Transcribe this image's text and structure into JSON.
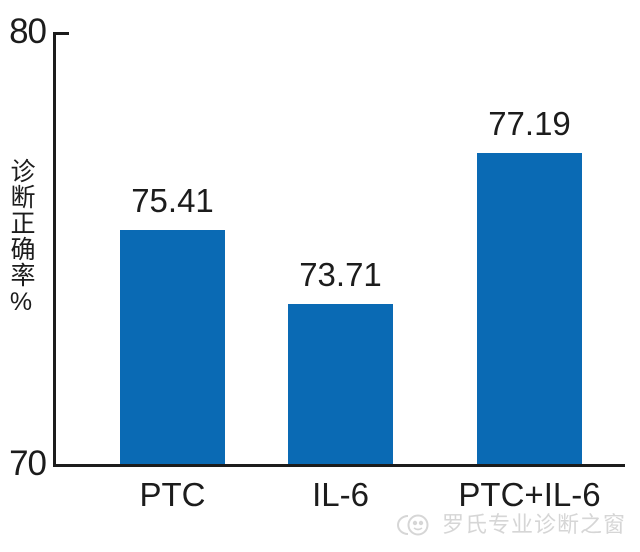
{
  "chart_data": {
    "type": "bar",
    "categories": [
      "PTC",
      "IL-6",
      "PTC+IL-6"
    ],
    "values": [
      75.41,
      73.71,
      77.19
    ],
    "title": "",
    "xlabel": "",
    "ylabel": "诊断正确率%",
    "ylim": [
      70,
      80
    ],
    "yticks": [
      "80",
      "70"
    ],
    "grid": false,
    "legend": false,
    "bar_color": "#0a6ab4",
    "axis_color": "#1c1c1c"
  },
  "watermark": {
    "label": "罗氏专业诊断之窗",
    "icon": "wechat-account-logo-icon",
    "color": "#d6d6d6"
  }
}
